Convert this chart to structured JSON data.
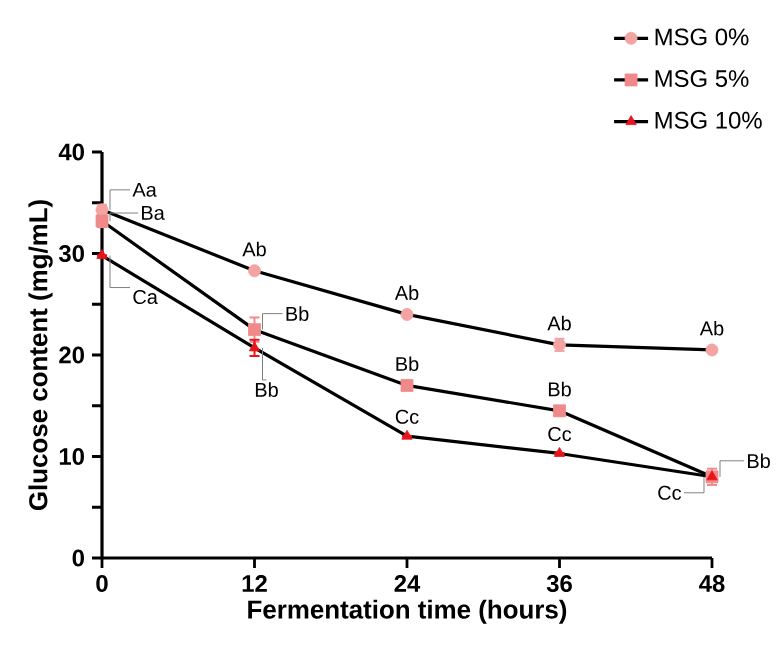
{
  "chart_data": {
    "type": "line",
    "xlabel": "Fermentation time (hours)",
    "ylabel": "Glucose content (mg/mL)",
    "x": [
      0,
      12,
      24,
      36,
      48
    ],
    "xlim": [
      0,
      48
    ],
    "xticks": [
      0,
      12,
      24,
      36,
      48
    ],
    "ylim": [
      0,
      40
    ],
    "yticks": [
      0,
      {
        "value": 5,
        "label": null
      },
      10,
      {
        "value": 15,
        "label": null
      },
      20,
      {
        "value": 25,
        "label": null
      },
      30,
      {
        "value": 35,
        "label": null
      },
      40
    ],
    "legend": "top right",
    "grid": false,
    "series": [
      {
        "name": "MSG 0%",
        "color": "#f4a3a3",
        "marker": "circle",
        "values": [
          34.3,
          28.3,
          24,
          21,
          20.5
        ],
        "errors": [
          0.5,
          null,
          null,
          0.6,
          null
        ]
      },
      {
        "name": "MSG 5%",
        "color": "#f08a8a",
        "marker": "square",
        "values": [
          33.2,
          22.5,
          17,
          14.5,
          8
        ],
        "errors": [
          0.6,
          1.2,
          null,
          0.4,
          0.8
        ]
      },
      {
        "name": "MSG 10%",
        "color": "#e8141c",
        "marker": "triangle",
        "values": [
          29.8,
          20.7,
          12,
          10.3,
          8
        ],
        "errors": [
          null,
          0.8,
          null,
          null,
          null
        ]
      }
    ],
    "annotations": [
      {
        "text": "Aa",
        "x": 0,
        "y": 34.3
      },
      {
        "text": "Ba",
        "x": 0,
        "y": 33.2
      },
      {
        "text": "Ca",
        "x": 0,
        "y": 29.8
      },
      {
        "text": "Ab",
        "x": 12,
        "y": 28.3
      },
      {
        "text": "Ab",
        "x": 24,
        "y": 24
      },
      {
        "text": "Ab",
        "x": 36,
        "y": 21
      },
      {
        "text": "Ab",
        "x": 48,
        "y": 20.5
      },
      {
        "text": "Bb",
        "x": 12,
        "y": 22.5
      },
      {
        "text": "Bb",
        "x": 12,
        "y": 20.7
      },
      {
        "text": "Bb",
        "x": 24,
        "y": 17
      },
      {
        "text": "Bb",
        "x": 36,
        "y": 14.5
      },
      {
        "text": "Bb",
        "x": 48,
        "y": 8
      },
      {
        "text": "Cc",
        "x": 24,
        "y": 12
      },
      {
        "text": "Cc",
        "x": 36,
        "y": 10.3
      },
      {
        "text": "Cc",
        "x": 48,
        "y": 8
      }
    ]
  }
}
